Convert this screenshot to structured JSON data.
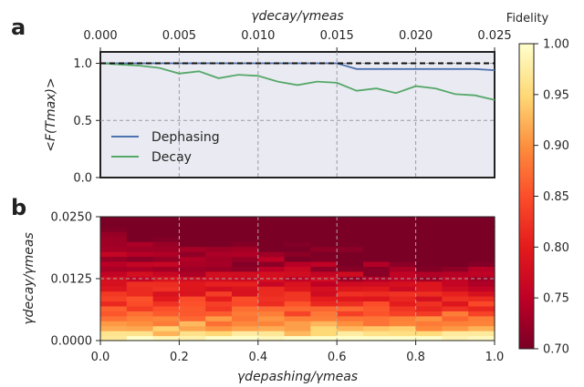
{
  "chart_data": [
    {
      "panel_label": "a",
      "type": "line",
      "xlabel_top": "γdecay/γmeas",
      "ylabel": "<F(Tmax)>",
      "x_ticks": [
        "0.000",
        "0.005",
        "0.010",
        "0.015",
        "0.020",
        "0.025"
      ],
      "y_ticks": [
        "0.0",
        "0.5",
        "1.0"
      ],
      "xlim": [
        0,
        0.025
      ],
      "ylim": [
        0,
        1.1
      ],
      "x": [
        0.0,
        0.00125,
        0.0025,
        0.00375,
        0.005,
        0.00625,
        0.0075,
        0.00875,
        0.01,
        0.01125,
        0.0125,
        0.01375,
        0.015,
        0.01625,
        0.0175,
        0.01875,
        0.02,
        0.02125,
        0.0225,
        0.02375,
        0.025
      ],
      "series": [
        {
          "name": "Dephasing",
          "color": "#4c72b0",
          "values": [
            1.0,
            1.0,
            1.0,
            1.0,
            1.0,
            1.0,
            1.0,
            1.0,
            1.0,
            1.0,
            1.0,
            1.0,
            1.0,
            0.95,
            0.95,
            0.95,
            0.95,
            0.95,
            0.95,
            0.95,
            0.94
          ]
        },
        {
          "name": "Decay",
          "color": "#55a868",
          "values": [
            1.0,
            0.99,
            0.98,
            0.96,
            0.91,
            0.93,
            0.87,
            0.9,
            0.89,
            0.84,
            0.81,
            0.84,
            0.83,
            0.76,
            0.78,
            0.74,
            0.8,
            0.78,
            0.73,
            0.72,
            0.68
          ]
        },
        {
          "name": "",
          "color": "#111111",
          "style": "dashed",
          "values": [
            1.0,
            1.0,
            1.0,
            1.0,
            1.0,
            1.0,
            1.0,
            1.0,
            1.0,
            1.0,
            1.0,
            1.0,
            1.0,
            1.0,
            1.0,
            1.0,
            1.0,
            1.0,
            1.0,
            1.0,
            1.0
          ]
        }
      ],
      "grid": true,
      "legend": "lower-left"
    },
    {
      "panel_label": "b",
      "type": "heatmap",
      "xlabel": "γdepashing/γmeas",
      "ylabel": "γdecay/γmeas",
      "x_ticks": [
        "0.0",
        "0.2",
        "0.4",
        "0.6",
        "0.8",
        "1.0"
      ],
      "y_ticks": [
        "0.0000",
        "0.0125",
        "0.0250"
      ],
      "xlim": [
        0,
        1
      ],
      "ylim": [
        0,
        0.025
      ],
      "n_cols": 15,
      "n_rows": 25,
      "value_range": [
        0.7,
        1.0
      ],
      "colormap": "YlOrRd_r",
      "colorbar_title": "Fidelity",
      "colorbar_ticks": [
        "0.70",
        "0.75",
        "0.80",
        "0.85",
        "0.90",
        "0.95",
        "1.00"
      ],
      "grid": true
    }
  ]
}
